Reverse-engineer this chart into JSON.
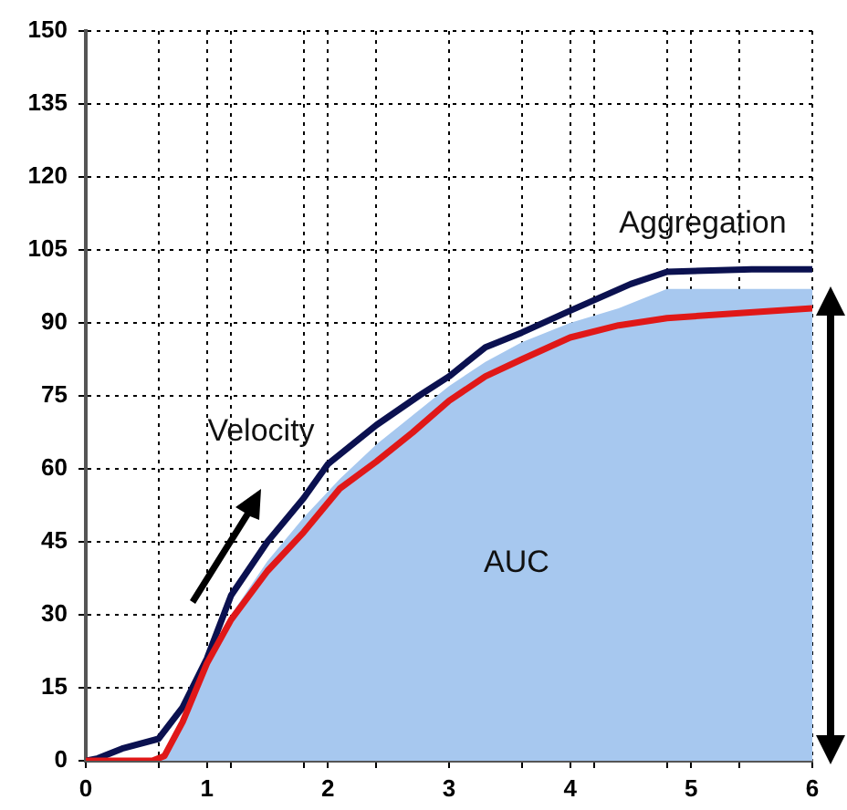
{
  "chart_data": {
    "type": "line",
    "annotations": [
      "Aggregation",
      "Velocity",
      "AUC"
    ],
    "series": [
      {
        "type": "area",
        "color": "#a7c8ef",
        "x": [
          0.6,
          0.8,
          1.0,
          1.2,
          1.5,
          1.8,
          2.1,
          2.4,
          2.7,
          3.0,
          3.3,
          3.6,
          4.0,
          4.4,
          4.8,
          5.4,
          6.0
        ],
        "values": [
          0,
          8,
          20,
          30,
          41,
          50,
          58,
          65,
          71,
          77,
          82,
          86,
          90,
          93,
          97,
          97,
          97
        ]
      },
      {
        "color": "#0b1150",
        "x": [
          0,
          0.1,
          0.3,
          0.6,
          0.8,
          1.0,
          1.2,
          1.5,
          1.8,
          2.0,
          2.4,
          2.75,
          3.0,
          3.3,
          3.6,
          4.0,
          4.5,
          4.8,
          5.5,
          6.0
        ],
        "values": [
          0,
          0.5,
          2.5,
          4.5,
          11,
          21,
          34,
          45,
          54,
          61,
          69,
          75,
          79,
          85,
          88,
          92.5,
          98,
          100.5,
          101,
          101
        ]
      },
      {
        "color": "#e01818",
        "x": [
          0,
          0.55,
          0.65,
          0.8,
          1.0,
          1.2,
          1.5,
          1.8,
          2.1,
          2.4,
          2.7,
          3.0,
          3.3,
          3.6,
          4.0,
          4.4,
          4.8,
          5.4,
          6.0
        ],
        "values": [
          0,
          0,
          1,
          8,
          20,
          29,
          39,
          47,
          56,
          61.5,
          67.5,
          74,
          79,
          82.5,
          87,
          89.5,
          91,
          92,
          93
        ]
      }
    ],
    "xlim": [
      0,
      6
    ],
    "xticks": [
      0,
      {
        "value": 0.6,
        "label": null
      },
      1,
      {
        "value": 1.2,
        "label": null
      },
      {
        "value": 1.8,
        "label": null
      },
      2,
      {
        "value": 2.4,
        "label": null
      },
      3,
      {
        "value": 3.6,
        "label": null
      },
      4,
      {
        "value": 4.2,
        "label": null
      },
      {
        "value": 4.8,
        "label": null
      },
      5,
      {
        "value": 5.4,
        "label": null
      },
      6
    ],
    "ylim": [
      0,
      150
    ],
    "yticks": [
      0,
      15,
      30,
      45,
      60,
      75,
      90,
      105,
      120,
      135,
      150
    ],
    "grid": true,
    "legend": false
  }
}
